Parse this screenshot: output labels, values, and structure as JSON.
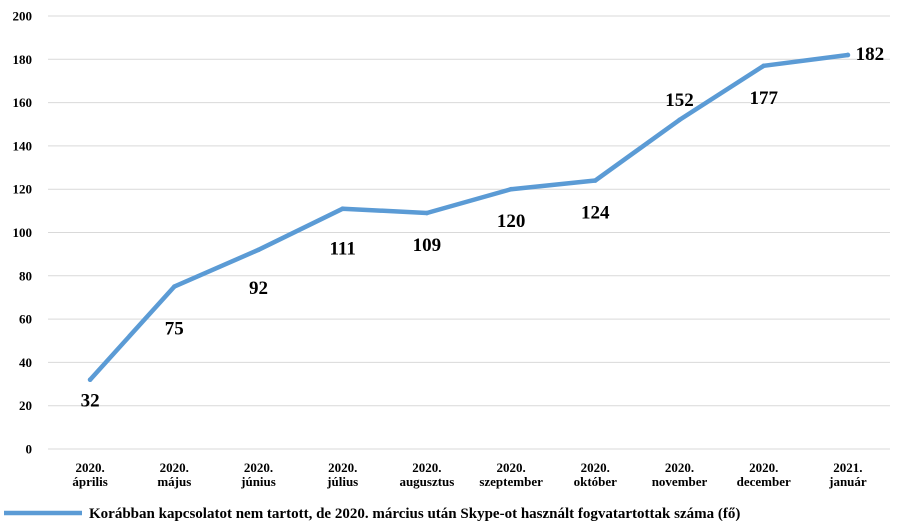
{
  "chart_data": {
    "type": "line",
    "categories": [
      [
        "2020.",
        "április"
      ],
      [
        "2020.",
        "május"
      ],
      [
        "2020.",
        "június"
      ],
      [
        "2020.",
        "július"
      ],
      [
        "2020.",
        "augusztus"
      ],
      [
        "2020.",
        "szeptember"
      ],
      [
        "2020.",
        "október"
      ],
      [
        "2020.",
        "november"
      ],
      [
        "2020.",
        "december"
      ],
      [
        "2021.",
        "január"
      ]
    ],
    "series": [
      {
        "name": "Korábban kapcsolatot nem tartott, de 2020. március után Skype-ot használt fogvatartottak száma (fő)",
        "values": [
          32,
          75,
          92,
          111,
          109,
          120,
          124,
          152,
          177,
          182
        ],
        "color": "#5b9bd5"
      }
    ],
    "ylim": [
      0,
      200
    ],
    "yticks": [
      0,
      20,
      40,
      60,
      80,
      100,
      120,
      140,
      160,
      180,
      200
    ],
    "grid": true,
    "legend": "bottom-left"
  }
}
